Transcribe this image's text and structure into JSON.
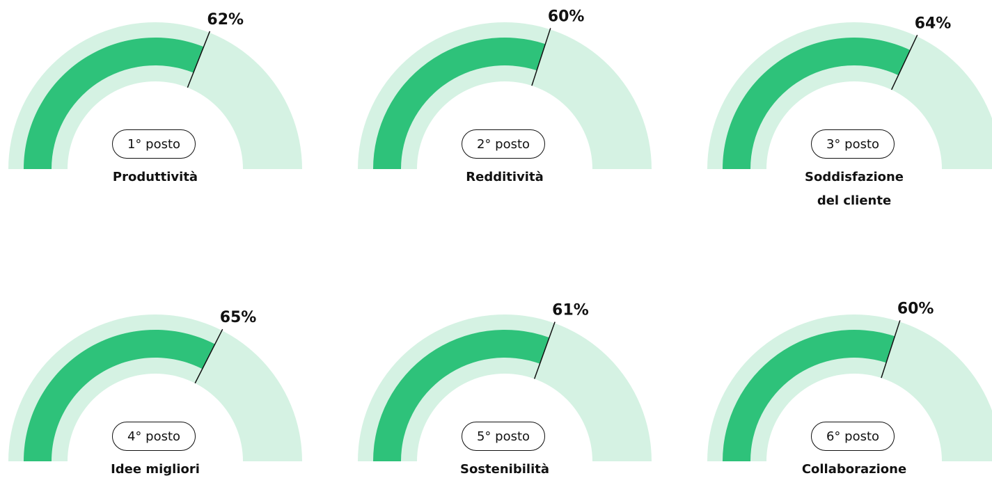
{
  "chart_data": [
    {
      "type": "gauge",
      "rank": "1° posto",
      "title": "Produttività",
      "values": [
        62
      ],
      "value_labels": [
        "62%"
      ],
      "ylim": [
        0,
        100
      ],
      "color": "#2ec27a",
      "track_color": "#d5f2e3"
    },
    {
      "type": "gauge",
      "rank": "2° posto",
      "title": "Redditività",
      "values": [
        60
      ],
      "value_labels": [
        "60%"
      ],
      "ylim": [
        0,
        100
      ],
      "color": "#2ec27a",
      "track_color": "#d5f2e3"
    },
    {
      "type": "gauge",
      "rank": "3° posto",
      "title": "Soddisfazione del cliente",
      "values": [
        64
      ],
      "value_labels": [
        "64%"
      ],
      "ylim": [
        0,
        100
      ],
      "color": "#2ec27a",
      "track_color": "#d5f2e3"
    },
    {
      "type": "gauge",
      "rank": "4° posto",
      "title": "Idee migliori",
      "values": [
        65
      ],
      "value_labels": [
        "65%"
      ],
      "ylim": [
        0,
        100
      ],
      "color": "#2ec27a",
      "track_color": "#d5f2e3"
    },
    {
      "type": "gauge",
      "rank": "5° posto",
      "title": "Sostenibilità",
      "values": [
        61
      ],
      "value_labels": [
        "61%"
      ],
      "ylim": [
        0,
        100
      ],
      "color": "#2ec27a",
      "track_color": "#d5f2e3"
    },
    {
      "type": "gauge",
      "rank": "6° posto",
      "title": "Collaborazione",
      "values": [
        60
      ],
      "value_labels": [
        "60%"
      ],
      "ylim": [
        0,
        100
      ],
      "color": "#2ec27a",
      "track_color": "#d5f2e3"
    }
  ]
}
